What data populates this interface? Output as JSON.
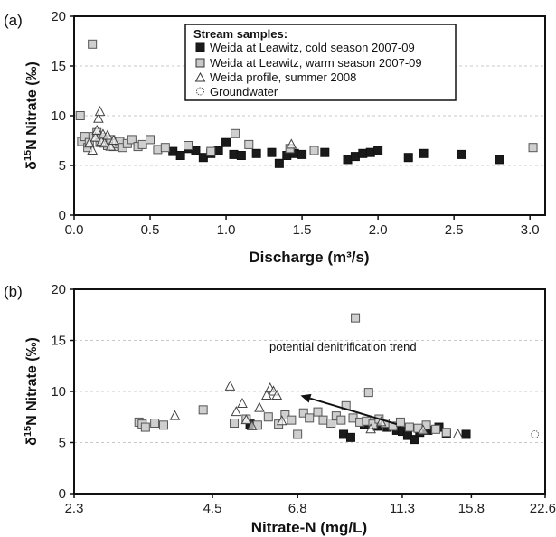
{
  "chart_data": [
    {
      "type": "scatter",
      "panel_label": "(a)",
      "xlabel": "Discharge (m³/s)",
      "ylabel_prefix": "δ",
      "ylabel_sup": "15",
      "ylabel_rest": "N Nitrate (‰)",
      "xlim": [
        0,
        3.1
      ],
      "ylim": [
        0,
        20
      ],
      "x_ticks": [
        "0.0",
        "0.5",
        "1.0",
        "1.5",
        "2.0",
        "2.5",
        "3.0"
      ],
      "x_tick_values": [
        0,
        0.5,
        1.0,
        1.5,
        2.0,
        2.5,
        3.0
      ],
      "y_ticks": [
        "0",
        "5",
        "10",
        "15",
        "20"
      ],
      "y_tick_values": [
        0,
        5,
        10,
        15,
        20
      ],
      "grid": "horizontal dashed",
      "legend": {
        "title": "Stream samples:",
        "position": "top-center",
        "entries": [
          {
            "label": "Weida at Leawitz, cold season 2007-09",
            "marker": "filled-square",
            "color": "#1a1a1a"
          },
          {
            "label": "Weida at Leawitz, warm season 2007-09",
            "marker": "open-square",
            "color": "#c8c8c8"
          },
          {
            "label": "Weida profile, summer 2008",
            "marker": "open-triangle",
            "color": "#ffffff"
          },
          {
            "label": "Groundwater",
            "marker": "dotted-circle",
            "color": "#ffffff"
          }
        ]
      },
      "series": [
        {
          "marker": "filled-square",
          "x": [
            0.65,
            0.7,
            0.75,
            0.8,
            0.85,
            0.9,
            0.95,
            1.0,
            1.05,
            1.1,
            1.2,
            1.3,
            1.35,
            1.4,
            1.45,
            1.5,
            1.65,
            1.8,
            1.85,
            1.9,
            1.95,
            2.0,
            2.2,
            2.3,
            2.55,
            2.8
          ],
          "y": [
            6.4,
            6.0,
            6.7,
            6.5,
            5.8,
            6.2,
            6.5,
            7.3,
            6.1,
            6.0,
            6.2,
            6.3,
            5.2,
            6.0,
            6.2,
            6.1,
            6.3,
            5.6,
            5.9,
            6.2,
            6.3,
            6.5,
            5.8,
            6.2,
            6.1,
            5.6
          ]
        },
        {
          "marker": "open-square",
          "x": [
            0.04,
            0.05,
            0.07,
            0.09,
            0.1,
            0.12,
            0.13,
            0.15,
            0.17,
            0.18,
            0.2,
            0.22,
            0.24,
            0.26,
            0.28,
            0.3,
            0.32,
            0.35,
            0.38,
            0.42,
            0.45,
            0.5,
            0.55,
            0.6,
            0.75,
            0.9,
            1.06,
            1.15,
            1.42,
            1.58,
            3.02
          ],
          "y": [
            10.0,
            7.4,
            7.9,
            6.8,
            7.3,
            17.2,
            7.9,
            8.3,
            7.3,
            7.8,
            7.6,
            7.0,
            7.6,
            6.9,
            7.2,
            7.4,
            6.8,
            7.2,
            7.6,
            6.9,
            7.1,
            7.6,
            6.6,
            6.8,
            7.0,
            6.4,
            8.2,
            7.1,
            6.7,
            6.5,
            6.8
          ]
        },
        {
          "marker": "open-triangle",
          "x": [
            0.1,
            0.12,
            0.14,
            0.15,
            0.16,
            0.17,
            0.18,
            0.19,
            0.2,
            0.22,
            0.24,
            0.26,
            1.43
          ],
          "y": [
            7.2,
            6.5,
            7.8,
            8.5,
            9.7,
            10.4,
            7.4,
            8.1,
            7.2,
            8.0,
            6.9,
            7.5,
            7.1
          ]
        }
      ]
    },
    {
      "type": "scatter",
      "panel_label": "(b)",
      "xlabel": "Nitrate-N (mg/L)",
      "ylabel_prefix": "δ",
      "ylabel_sup": "15",
      "ylabel_rest": "N Nitrate (‰)",
      "x_scale": "log",
      "xlim": [
        2.3,
        22.6
      ],
      "ylim": [
        0,
        20
      ],
      "x_ticks": [
        "2.3",
        "4.5",
        "6.8",
        "11.3",
        "15.8",
        "22.6"
      ],
      "x_tick_values": [
        2.3,
        4.5,
        6.8,
        11.3,
        15.8,
        22.6
      ],
      "y_ticks": [
        "0",
        "5",
        "10",
        "15",
        "20"
      ],
      "y_tick_values": [
        0,
        5,
        10,
        15,
        20
      ],
      "grid": "horizontal dashed",
      "annotation": {
        "text": "potential denitrification trend",
        "arrow_from": [
          11.0,
          6.8
        ],
        "arrow_to": [
          6.9,
          9.6
        ]
      },
      "series": [
        {
          "marker": "filled-square",
          "x": [
            5.4,
            8.5,
            8.8,
            9.4,
            10.0,
            10.5,
            11.0,
            11.3,
            11.6,
            12.0,
            12.3,
            12.8,
            13.5,
            14.0,
            15.4
          ],
          "y": [
            6.8,
            5.8,
            5.5,
            6.8,
            6.6,
            6.5,
            6.2,
            6.1,
            5.7,
            5.3,
            6.0,
            6.2,
            6.5,
            5.9,
            5.8
          ]
        },
        {
          "marker": "open-square",
          "x": [
            3.15,
            3.2,
            3.25,
            3.4,
            3.55,
            4.3,
            5.0,
            5.3,
            5.6,
            5.9,
            6.2,
            6.4,
            6.6,
            6.8,
            7.0,
            7.2,
            7.5,
            7.7,
            8.0,
            8.2,
            8.4,
            8.6,
            8.9,
            9.2,
            9.5,
            9.8,
            10.1,
            10.4,
            10.8,
            11.2,
            11.7,
            12.2,
            12.7,
            13.3,
            14.0,
            9.0,
            9.6
          ],
          "y": [
            7.0,
            6.8,
            6.5,
            6.9,
            6.7,
            8.2,
            6.9,
            7.3,
            6.7,
            7.5,
            6.8,
            7.7,
            7.2,
            5.8,
            7.9,
            7.4,
            8.0,
            7.2,
            6.9,
            7.6,
            7.2,
            8.6,
            7.4,
            7.0,
            7.1,
            6.8,
            7.3,
            6.9,
            6.6,
            7.0,
            6.5,
            6.4,
            6.7,
            6.3,
            6.0,
            17.2,
            9.9
          ]
        },
        {
          "marker": "open-triangle",
          "x": [
            3.75,
            4.9,
            5.05,
            5.2,
            5.3,
            5.45,
            5.65,
            5.85,
            5.95,
            6.05,
            6.15,
            6.3,
            9.7,
            10.2,
            12.5,
            14.8
          ],
          "y": [
            7.6,
            10.5,
            8.0,
            8.8,
            7.2,
            6.6,
            8.4,
            9.6,
            10.3,
            10.0,
            9.6,
            7.1,
            6.3,
            7.0,
            6.2,
            5.8
          ]
        },
        {
          "marker": "dotted-circle",
          "x": [
            21.5
          ],
          "y": [
            5.8
          ]
        }
      ]
    }
  ]
}
